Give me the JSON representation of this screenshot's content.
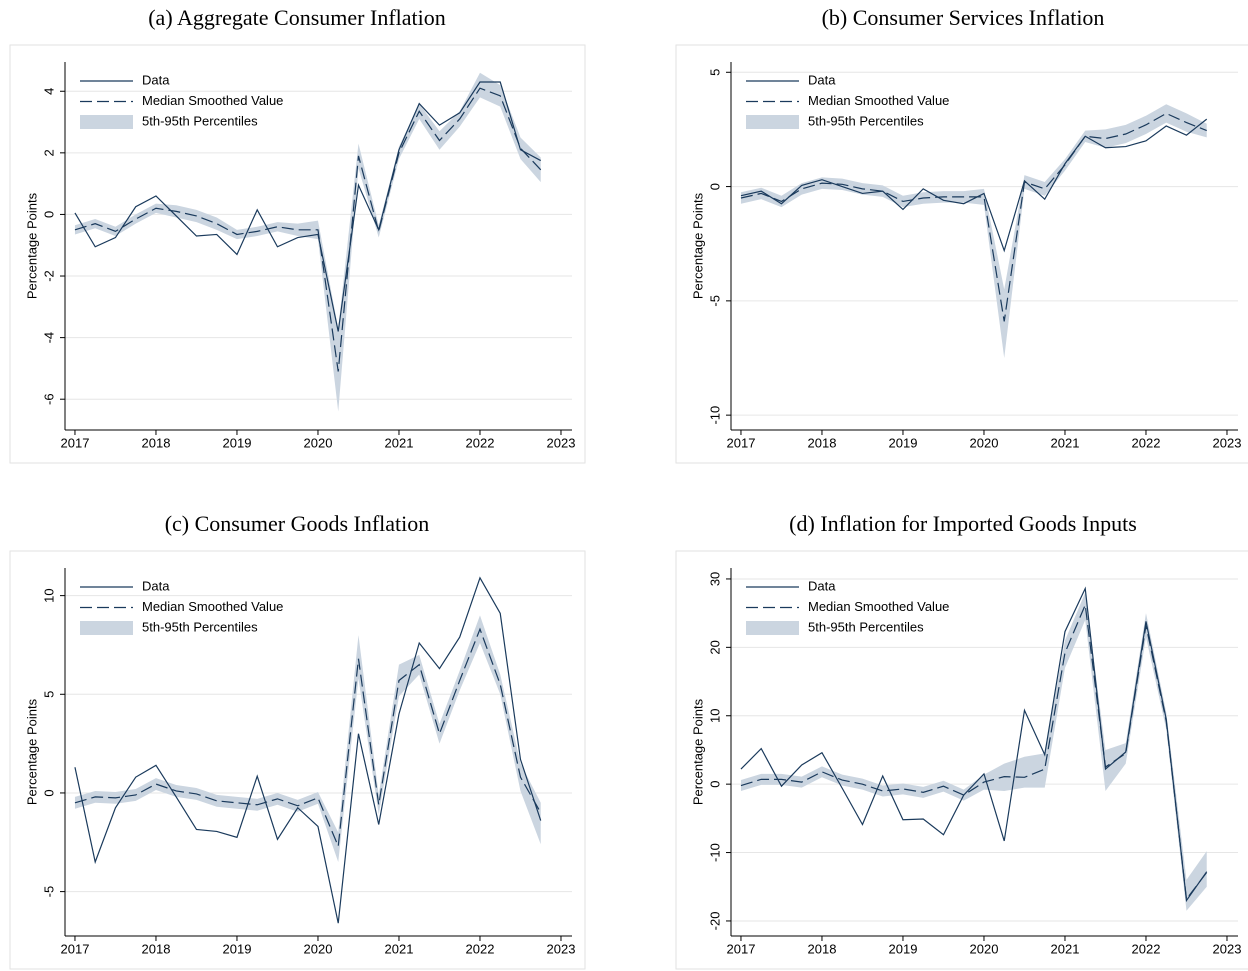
{
  "chart_data": [
    {
      "type": "line",
      "title": "(a) Aggregate Consumer Inflation",
      "ylabel": "Percentage Points",
      "x": [
        2017,
        2017.25,
        2017.5,
        2017.75,
        2018,
        2018.25,
        2018.5,
        2018.75,
        2019,
        2019.25,
        2019.5,
        2019.75,
        2020,
        2020.25,
        2020.5,
        2020.75,
        2021,
        2021.25,
        2021.5,
        2021.75,
        2022,
        2022.25,
        2022.5,
        2022.75
      ],
      "xlim": [
        2016.877,
        2023.136
      ],
      "xticks": [
        2017,
        2018,
        2019,
        2020,
        2021,
        2022,
        2023
      ],
      "ylim": [
        -7.0,
        4.95
      ],
      "yticks": [
        -6,
        -4,
        -2,
        0,
        2,
        4
      ],
      "grid": true,
      "legend": "upper left",
      "series": [
        {
          "name": "Data",
          "color": "#1a3a5c",
          "style": "solid",
          "values": [
            0.05,
            -1.05,
            -0.75,
            0.25,
            0.6,
            -0.05,
            -0.7,
            -0.65,
            -1.3,
            0.15,
            -1.05,
            -0.75,
            -0.65,
            -3.8,
            0.95,
            -0.5,
            2.1,
            3.6,
            2.9,
            3.3,
            4.3,
            4.3,
            2.1,
            1.75
          ]
        },
        {
          "name": "Median Smoothed Value",
          "color": "#1a3a5c",
          "style": "dashed",
          "values": [
            -0.5,
            -0.3,
            -0.55,
            -0.15,
            0.2,
            0.1,
            -0.05,
            -0.3,
            -0.65,
            -0.55,
            -0.4,
            -0.5,
            -0.5,
            -5.1,
            1.9,
            -0.55,
            2.0,
            3.35,
            2.4,
            3.1,
            4.1,
            3.85,
            2.15,
            1.45
          ]
        }
      ],
      "band": {
        "name": "5th-95th Percentiles",
        "color": "#cbd5e0",
        "lower": [
          -0.65,
          -0.45,
          -0.7,
          -0.3,
          0.05,
          -0.1,
          -0.25,
          -0.5,
          -0.8,
          -0.7,
          -0.55,
          -0.7,
          -0.8,
          -6.4,
          1.5,
          -0.75,
          1.8,
          3.1,
          2.1,
          2.85,
          3.8,
          3.5,
          1.8,
          1.05
        ],
        "upper": [
          -0.35,
          -0.15,
          -0.4,
          0.0,
          0.35,
          0.3,
          0.15,
          -0.1,
          -0.5,
          -0.4,
          -0.25,
          -0.3,
          -0.2,
          -3.7,
          2.3,
          -0.35,
          2.2,
          3.6,
          2.7,
          3.35,
          4.6,
          4.2,
          2.5,
          1.85
        ]
      }
    },
    {
      "type": "line",
      "title": "(b) Consumer Services Inflation",
      "ylabel": "Percentage Points",
      "x": [
        2017,
        2017.25,
        2017.5,
        2017.75,
        2018,
        2018.25,
        2018.5,
        2018.75,
        2019,
        2019.25,
        2019.5,
        2019.75,
        2020,
        2020.25,
        2020.5,
        2020.75,
        2021,
        2021.25,
        2021.5,
        2021.75,
        2022,
        2022.25,
        2022.5,
        2022.75
      ],
      "xlim": [
        2016.877,
        2023.136
      ],
      "xticks": [
        2017,
        2018,
        2019,
        2020,
        2021,
        2022,
        2023
      ],
      "ylim": [
        -10.65,
        5.45
      ],
      "yticks": [
        -10,
        -5,
        0,
        5
      ],
      "grid": true,
      "legend": "upper left",
      "series": [
        {
          "name": "Data",
          "color": "#1a3a5c",
          "style": "solid",
          "values": [
            -0.4,
            -0.2,
            -0.75,
            0.05,
            0.3,
            0.0,
            -0.3,
            -0.2,
            -1.0,
            -0.1,
            -0.6,
            -0.75,
            -0.3,
            -2.8,
            0.25,
            -0.55,
            1.0,
            2.2,
            1.7,
            1.75,
            2.0,
            2.65,
            2.25,
            2.95
          ]
        },
        {
          "name": "Median Smoothed Value",
          "color": "#1a3a5c",
          "style": "dashed",
          "values": [
            -0.5,
            -0.3,
            -0.65,
            -0.1,
            0.15,
            0.1,
            -0.1,
            -0.2,
            -0.65,
            -0.5,
            -0.45,
            -0.45,
            -0.45,
            -5.9,
            0.2,
            -0.1,
            0.95,
            2.2,
            2.1,
            2.3,
            2.7,
            3.2,
            2.8,
            2.45
          ]
        }
      ],
      "band": {
        "name": "5th-95th Percentiles",
        "color": "#cbd5e0",
        "lower": [
          -0.75,
          -0.55,
          -0.9,
          -0.35,
          -0.1,
          -0.15,
          -0.35,
          -0.45,
          -0.9,
          -0.75,
          -0.7,
          -0.7,
          -0.8,
          -7.5,
          -0.1,
          -0.4,
          0.7,
          1.95,
          1.7,
          1.9,
          2.3,
          2.8,
          2.4,
          2.15
        ],
        "upper": [
          -0.25,
          -0.05,
          -0.4,
          0.15,
          0.4,
          0.35,
          0.15,
          0.05,
          -0.4,
          -0.25,
          -0.2,
          -0.2,
          -0.1,
          -4.5,
          0.5,
          0.2,
          1.2,
          2.45,
          2.5,
          2.7,
          3.1,
          3.6,
          3.2,
          2.75
        ]
      }
    },
    {
      "type": "line",
      "title": "(c) Consumer Goods Inflation",
      "ylabel": "Percentage Points",
      "x": [
        2017,
        2017.25,
        2017.5,
        2017.75,
        2018,
        2018.25,
        2018.5,
        2018.75,
        2019,
        2019.25,
        2019.5,
        2019.75,
        2020,
        2020.25,
        2020.5,
        2020.75,
        2021,
        2021.25,
        2021.5,
        2021.75,
        2022,
        2022.25,
        2022.5,
        2022.75
      ],
      "xlim": [
        2016.877,
        2023.136
      ],
      "xticks": [
        2017,
        2018,
        2019,
        2020,
        2021,
        2022,
        2023
      ],
      "ylim": [
        -7.25,
        11.4
      ],
      "yticks": [
        -5,
        0,
        5,
        10
      ],
      "grid": true,
      "legend": "upper left",
      "series": [
        {
          "name": "Data",
          "color": "#1a3a5c",
          "style": "solid",
          "values": [
            1.3,
            -3.5,
            -0.75,
            0.8,
            1.4,
            -0.2,
            -1.85,
            -1.95,
            -2.25,
            0.85,
            -2.35,
            -0.75,
            -1.7,
            -6.6,
            3.0,
            -1.6,
            4.0,
            7.6,
            6.3,
            7.9,
            10.9,
            9.1,
            1.7,
            -1.4
          ]
        },
        {
          "name": "Median Smoothed Value",
          "color": "#1a3a5c",
          "style": "dashed",
          "values": [
            -0.5,
            -0.2,
            -0.25,
            -0.1,
            0.45,
            0.1,
            -0.05,
            -0.4,
            -0.5,
            -0.6,
            -0.3,
            -0.65,
            -0.25,
            -2.7,
            6.8,
            -0.6,
            5.7,
            6.5,
            3.0,
            5.7,
            8.3,
            5.5,
            0.8,
            -1.0
          ]
        }
      ],
      "band": {
        "name": "5th-95th Percentiles",
        "color": "#cbd5e0",
        "lower": [
          -0.8,
          -0.5,
          -0.55,
          -0.4,
          0.15,
          -0.2,
          -0.35,
          -0.7,
          -0.8,
          -0.9,
          -0.6,
          -0.95,
          -0.55,
          -3.5,
          5.8,
          -1.1,
          4.9,
          6.0,
          2.5,
          5.2,
          7.6,
          5.0,
          0.1,
          -2.6
        ],
        "upper": [
          -0.2,
          0.1,
          0.05,
          0.2,
          0.75,
          0.4,
          0.25,
          -0.1,
          -0.2,
          -0.3,
          0.0,
          -0.35,
          0.05,
          -2.0,
          8.0,
          -0.1,
          6.5,
          7.0,
          3.5,
          6.2,
          9.0,
          6.0,
          1.5,
          -0.5
        ]
      }
    },
    {
      "type": "line",
      "title": "(d) Inflation for Imported Goods Inputs",
      "ylabel": "Percentage Points",
      "x": [
        2017,
        2017.25,
        2017.5,
        2017.75,
        2018,
        2018.25,
        2018.5,
        2018.75,
        2019,
        2019.25,
        2019.5,
        2019.75,
        2020,
        2020.25,
        2020.5,
        2020.75,
        2021,
        2021.25,
        2021.5,
        2021.75,
        2022,
        2022.25,
        2022.5,
        2022.75
      ],
      "xlim": [
        2016.877,
        2023.136
      ],
      "xticks": [
        2017,
        2018,
        2019,
        2020,
        2021,
        2022,
        2023
      ],
      "ylim": [
        -22.2,
        31.6
      ],
      "yticks": [
        -20,
        -10,
        0,
        10,
        20,
        30
      ],
      "grid": true,
      "legend": "upper left",
      "series": [
        {
          "name": "Data",
          "color": "#1a3a5c",
          "style": "solid",
          "values": [
            2.2,
            5.2,
            -0.3,
            2.8,
            4.6,
            -0.6,
            -5.9,
            1.2,
            -5.2,
            -5.1,
            -7.4,
            -1.6,
            1.5,
            -8.3,
            10.8,
            4.3,
            22.3,
            28.6,
            2.2,
            4.7,
            23.8,
            9.5,
            -17.0,
            -12.8
          ]
        },
        {
          "name": "Median Smoothed Value",
          "color": "#1a3a5c",
          "style": "dashed",
          "values": [
            -0.2,
            0.7,
            0.7,
            0.3,
            1.8,
            0.6,
            0.0,
            -1.0,
            -0.7,
            -1.2,
            -0.3,
            -1.6,
            0.3,
            1.1,
            1.0,
            2.2,
            19.2,
            26.2,
            2.5,
            4.5,
            23.2,
            9.2,
            -16.8,
            -12.9
          ]
        }
      ],
      "band": {
        "name": "5th-95th Percentiles",
        "color": "#cbd5e0",
        "lower": [
          -1.0,
          -0.1,
          -0.1,
          -0.5,
          1.0,
          -0.2,
          -0.8,
          -1.8,
          -1.5,
          -2.0,
          -1.1,
          -2.4,
          -0.8,
          -1.0,
          -0.5,
          -0.5,
          17.0,
          24.0,
          -1.0,
          3.0,
          21.5,
          8.0,
          -18.5,
          -15.0
        ],
        "upper": [
          0.6,
          1.5,
          1.5,
          1.1,
          2.6,
          1.4,
          0.8,
          -0.2,
          0.1,
          -0.4,
          0.5,
          -0.8,
          1.4,
          3.0,
          4.0,
          4.5,
          21.0,
          28.0,
          5.0,
          6.0,
          25.0,
          10.5,
          -14.0,
          -9.8
        ]
      }
    }
  ]
}
